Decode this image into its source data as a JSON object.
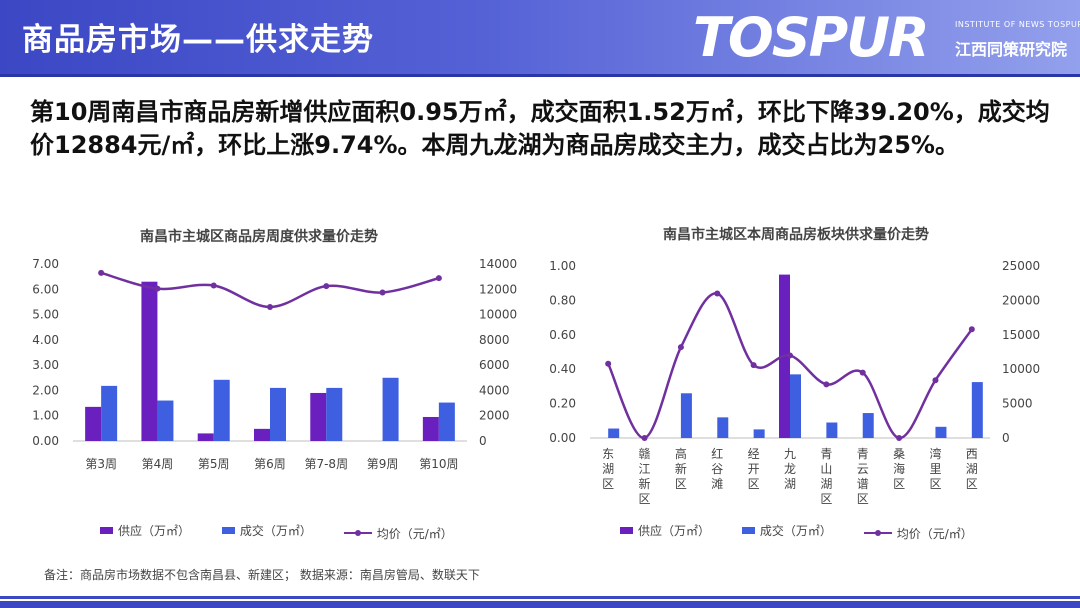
{
  "header": {
    "title": "商品房市场——供求走势",
    "logo_main": "TOSPUR",
    "logo_sub_en": "INSTITUTE OF NEWS TOSPUR",
    "logo_sub_cn": "江西同策研究院"
  },
  "headline": "第10周南昌市商品房新增供应面积0.95万㎡，成交面积1.52万㎡，环比下降39.20%，成交均价12884元/㎡，环比上涨9.74%。本周九龙湖为商品房成交主力，成交占比为25%。",
  "footnote": "备注：商品房市场数据不包含南昌县、新建区；   数据来源：南昌房管局、数联天下",
  "colors": {
    "header": "#3b47c4",
    "supply": "#6a1fbf",
    "deal": "#3d5fe0",
    "price": "#7030a0"
  },
  "chart_data": [
    {
      "type": "bar",
      "title": "南昌市主城区商品房周度供求量价走势",
      "categories": [
        "第3周",
        "第4周",
        "第5周",
        "第6周",
        "第7-8周",
        "第9周",
        "第10周"
      ],
      "series": [
        {
          "name": "供应（万㎡）",
          "type": "bar",
          "axis": "left",
          "values": [
            1.35,
            6.3,
            0.3,
            0.48,
            1.9,
            0,
            0.95
          ]
        },
        {
          "name": "成交（万㎡）",
          "type": "bar",
          "axis": "left",
          "values": [
            2.18,
            1.6,
            2.42,
            2.1,
            2.1,
            2.5,
            1.52
          ]
        },
        {
          "name": "均价（元/㎡）",
          "type": "line",
          "axis": "right",
          "values": [
            13300,
            12050,
            12300,
            10600,
            12250,
            11750,
            12884
          ]
        }
      ],
      "y_left": {
        "min": 0,
        "max": 7,
        "ticks": [
          "0.00",
          "1.00",
          "2.00",
          "3.00",
          "4.00",
          "5.00",
          "6.00",
          "7.00"
        ]
      },
      "y_right": {
        "min": 0,
        "max": 14000,
        "ticks": [
          "0",
          "2000",
          "4000",
          "6000",
          "8000",
          "10000",
          "12000",
          "14000"
        ]
      },
      "legend": "bottom"
    },
    {
      "type": "bar",
      "title": "南昌市主城区本周商品房板块供求量价走势",
      "categories": [
        "东湖区",
        "赣江新区",
        "高新区",
        "红谷滩",
        "经开区",
        "九龙湖",
        "青山湖区",
        "青云谱区",
        "桑海区",
        "湾里区",
        "西湖区"
      ],
      "series": [
        {
          "name": "供应（万㎡）",
          "type": "bar",
          "axis": "left",
          "values": [
            0,
            0,
            0,
            0,
            0,
            0.95,
            0,
            0,
            0,
            0,
            0
          ]
        },
        {
          "name": "成交（万㎡）",
          "type": "bar",
          "axis": "left",
          "values": [
            0.055,
            0,
            0.26,
            0.12,
            0.05,
            0.37,
            0.09,
            0.145,
            0,
            0.065,
            0.325
          ]
        },
        {
          "name": "均价（元/㎡）",
          "type": "line",
          "axis": "right",
          "values": [
            10800,
            0,
            13200,
            21000,
            10600,
            12000,
            7800,
            9500,
            0,
            8400,
            15800
          ]
        }
      ],
      "y_left": {
        "min": 0,
        "max": 1,
        "ticks": [
          "0.00",
          "0.20",
          "0.40",
          "0.60",
          "0.80",
          "1.00"
        ]
      },
      "y_right": {
        "min": 0,
        "max": 25000,
        "ticks": [
          "0",
          "5000",
          "10000",
          "15000",
          "20000",
          "25000"
        ]
      },
      "legend": "bottom"
    }
  ]
}
